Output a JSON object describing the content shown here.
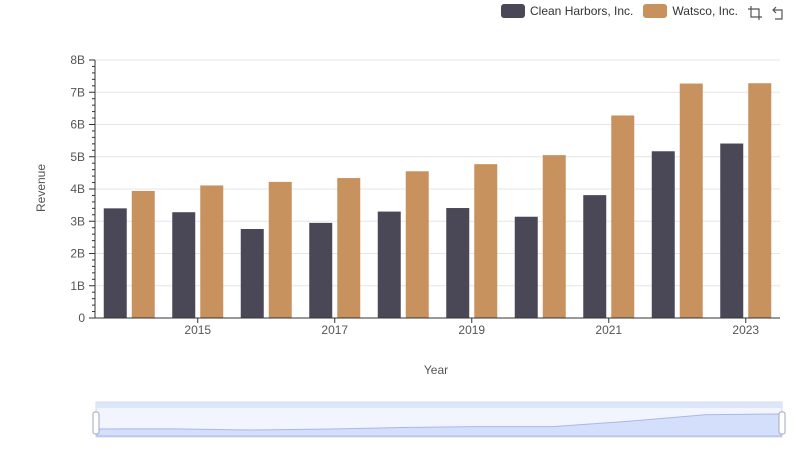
{
  "colors": {
    "clean_harbors": "#4a4857",
    "watsco": "#c8925e",
    "grid": "#e6e6e6",
    "axis": "#333333",
    "slider_fill": "#d4e0fb",
    "slider_line": "#a7b8e8"
  },
  "legend": {
    "items": [
      {
        "label": "Clean Harbors, Inc.",
        "color": "#4a4857"
      },
      {
        "label": "Watsco, Inc.",
        "color": "#c8925e"
      }
    ]
  },
  "toolbar": {
    "icons": [
      "crop-zoom-icon",
      "reset-zoom-icon"
    ]
  },
  "chart_data": {
    "type": "bar",
    "x": [
      2014,
      2015,
      2016,
      2017,
      2018,
      2019,
      2020,
      2021,
      2022,
      2023
    ],
    "series": [
      {
        "name": "Clean Harbors, Inc.",
        "values": [
          3.4,
          3.28,
          2.76,
          2.95,
          3.3,
          3.41,
          3.14,
          3.81,
          5.17,
          5.41
        ]
      },
      {
        "name": "Watsco, Inc.",
        "values": [
          3.94,
          4.11,
          4.22,
          4.34,
          4.55,
          4.77,
          5.05,
          6.28,
          7.27,
          7.28
        ]
      }
    ],
    "xlabel": "Year",
    "ylabel": "Revenue",
    "ylim": [
      0,
      8
    ],
    "yticks": [
      "0",
      "1B",
      "2B",
      "3B",
      "4B",
      "5B",
      "6B",
      "7B",
      "8B"
    ],
    "xtick_labels": [
      "2015",
      "2017",
      "2019",
      "2021",
      "2023"
    ],
    "grid": true,
    "legend_position": "top-right"
  }
}
